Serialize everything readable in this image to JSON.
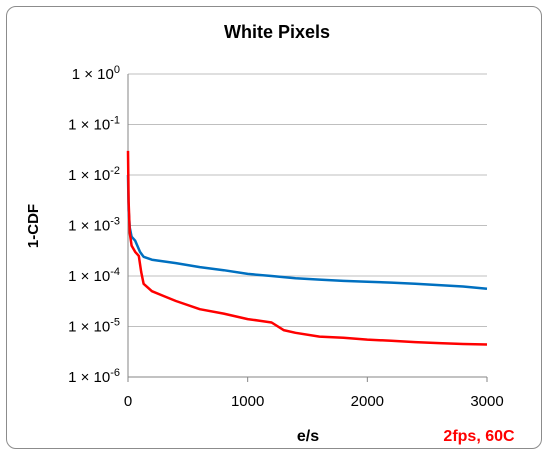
{
  "chart_data": {
    "type": "line",
    "title": "White Pixels",
    "xlabel": "e/s",
    "ylabel": "1-CDF",
    "xlim": [
      0,
      3000
    ],
    "ylim": [
      1e-06,
      1
    ],
    "y_scale": "log",
    "grid": "horizontal",
    "x_ticks": [
      "0",
      "1000",
      "2000",
      "3000"
    ],
    "y_ticks": [
      {
        "value": 1,
        "base": "1 × 10",
        "exp": "0"
      },
      {
        "value": 0.1,
        "base": "1 × 10",
        "exp": "-1"
      },
      {
        "value": 0.01,
        "base": "1 × 10",
        "exp": "-2"
      },
      {
        "value": 0.001,
        "base": "1 × 10",
        "exp": "-3"
      },
      {
        "value": 0.0001,
        "base": "1 × 10",
        "exp": "-4"
      },
      {
        "value": 1e-05,
        "base": "1 × 10",
        "exp": "-5"
      },
      {
        "value": 1e-06,
        "base": "1 × 10",
        "exp": "-6"
      }
    ],
    "annotation": {
      "text": "2fps, 60C",
      "color": "#ff0000"
    },
    "series": [
      {
        "color": "#0070c0",
        "x": [
          0,
          5,
          15,
          30,
          60,
          100,
          130,
          200,
          400,
          600,
          800,
          1000,
          1200,
          1400,
          1600,
          1800,
          2000,
          2200,
          2400,
          2600,
          2800,
          3000
        ],
        "y": [
          0.01,
          0.002,
          0.0009,
          0.0006,
          0.0005,
          0.0003,
          0.00024,
          0.00021,
          0.00018,
          0.00015,
          0.00013,
          0.00011,
          0.0001,
          9e-05,
          8.5e-05,
          8e-05,
          7.7e-05,
          7.4e-05,
          7e-05,
          6.6e-05,
          6.2e-05,
          5.6e-05
        ]
      },
      {
        "color": "#ff0000",
        "x": [
          0,
          5,
          15,
          30,
          60,
          90,
          110,
          130,
          200,
          300,
          400,
          600,
          800,
          1000,
          1100,
          1200,
          1300,
          1400,
          1600,
          1800,
          2000,
          2200,
          2400,
          2600,
          2800,
          3000
        ],
        "y": [
          0.03,
          0.003,
          0.0007,
          0.0004,
          0.0003,
          0.00025,
          0.00012,
          7e-05,
          5e-05,
          4e-05,
          3.2e-05,
          2.2e-05,
          1.8e-05,
          1.4e-05,
          1.3e-05,
          1.2e-05,
          8.5e-06,
          7.5e-06,
          6.3e-06,
          6e-06,
          5.5e-06,
          5.2e-06,
          4.9e-06,
          4.7e-06,
          4.5e-06,
          4.4e-06
        ]
      }
    ]
  }
}
